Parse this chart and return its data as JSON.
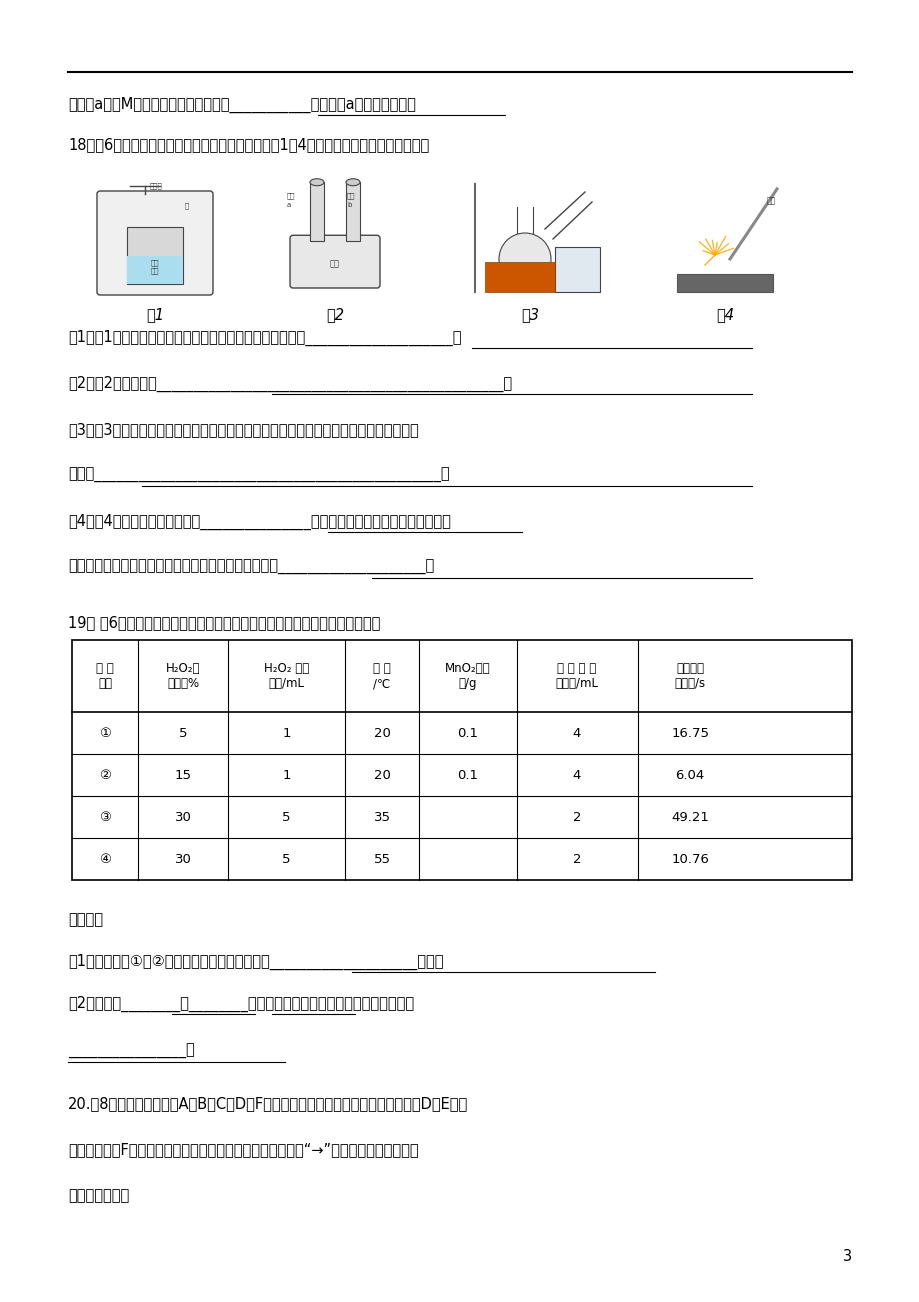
{
  "bg_color": "#ffffff",
  "text_color": "#000000",
  "page_width": 9.2,
  "page_height": 13.02,
  "page_number": "3",
  "line1": "质量为a，则M元素原子核内的中子数为___________。（用含a的代数式表示）",
  "q18_text": "18．（6分）化学是一门以实验为基础的科学，下图1～4是教科书上有关实验的装置图：",
  "fig_labels": [
    "图1",
    "图2",
    "图3",
    "图4"
  ],
  "q18_sub1": "（1）图1中证明氧气约占空气体积的五分之一的实验现象是____________________。",
  "q18_sub2": "（2）图2实验名称是_______________________________________________。",
  "q18_sub3": "（3）图3是制取蚓馏水的简易装置，为使水蒸气的冷凝效果更好，可对实验装置做的一项",
  "q18_sub3b": "改进为_______________________________________________。",
  "q18_sub4": "（4）图4中反应的化学方程式为_______________。镁条完全燃烧后，称量得知石棉网",
  "q18_sub4b": "上留下固体质量反而比反应前镁条还轻，其原因可能是____________________。",
  "q19_text": "19． （6分）以下是某研究小组探究影响反应速率部分因素的相关实验数据。",
  "table_col0_header": "实 验\n序号",
  "table_col1_header": "H₂O₂溶\n液浓度%",
  "table_col2_header": "H₂O₂ 溶液\n体积/mL",
  "table_col3_header": "温 度\n/℃",
  "table_col4_header": "MnO₂的用\n量/g",
  "table_col5_header": "收 集 氧 气\n的体积/mL",
  "table_col6_header": "反应所需\n的时间/s",
  "table_rows": [
    [
      "①",
      "5",
      "1",
      "20",
      "0.1",
      "4",
      "16.75"
    ],
    [
      "②",
      "15",
      "1",
      "20",
      "0.1",
      "4",
      "6.04"
    ],
    [
      "③",
      "30",
      "5",
      "35",
      "",
      "2",
      "49.21"
    ],
    [
      "④",
      "30",
      "5",
      "55",
      "",
      "2",
      "10.76"
    ]
  ],
  "q19_answer_text1": "请回答：",
  "q19_answer1": "（1）通过实验①和②对比可知，化学反应速率与____________________有关；",
  "q19_answer2": "（2）从实验________和________对比可知，化学反应速率与温度的关系是：",
  "q19_answer2b": "________________。",
  "q20_text": "20.（8分）如下图所示，A、B、C、D、F分别是五种含有氧元素的单质或化合物，D、E是两",
  "q20_text2": "种黑色固体，F是一种能使澄清石灰水变浑浊的气体。（图中“→”表示转化关系，反应条",
  "q20_text3": "件部分省略。）"
}
